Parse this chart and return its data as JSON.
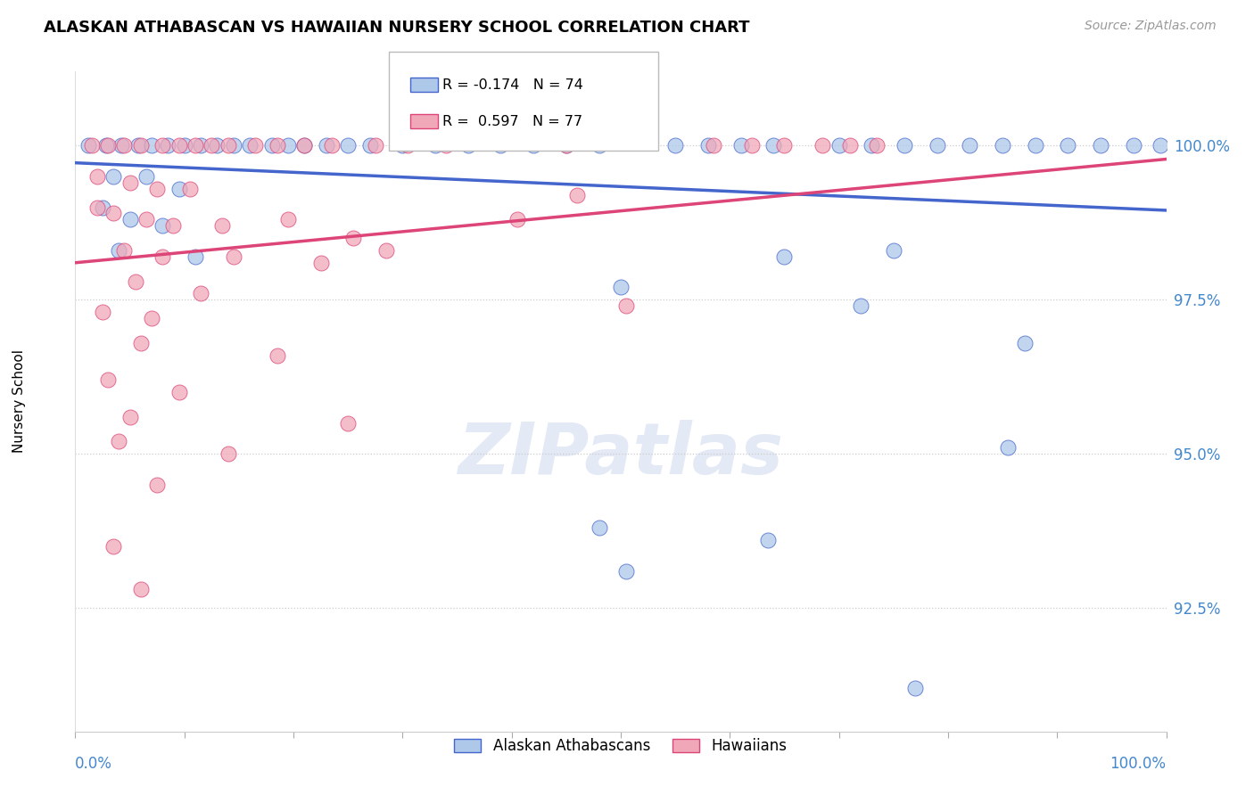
{
  "title": "ALASKAN ATHABASCAN VS HAWAIIAN NURSERY SCHOOL CORRELATION CHART",
  "source": "Source: ZipAtlas.com",
  "ylabel": "Nursery School",
  "legend_blue_label": "Alaskan Athabascans",
  "legend_pink_label": "Hawaiians",
  "legend_blue_r": "R = -0.174",
  "legend_blue_n": "N = 74",
  "legend_pink_r": "R =  0.597",
  "legend_pink_n": "N = 77",
  "blue_color": "#aec8ea",
  "pink_color": "#f0a8b8",
  "line_blue": "#4466cc",
  "line_pink": "#dd4477",
  "ytick_values": [
    92.5,
    95.0,
    97.5,
    100.0
  ],
  "ylim": [
    90.5,
    101.2
  ],
  "xlim": [
    0,
    100
  ],
  "blue_line_x": [
    0,
    100
  ],
  "blue_line_y": [
    99.72,
    98.95
  ],
  "pink_line_x": [
    0,
    100
  ],
  "pink_line_y": [
    98.1,
    99.78
  ],
  "blue_points": [
    [
      1.2,
      100.0
    ],
    [
      2.8,
      100.0
    ],
    [
      4.2,
      100.0
    ],
    [
      5.8,
      100.0
    ],
    [
      7.0,
      100.0
    ],
    [
      8.5,
      100.0
    ],
    [
      10.0,
      100.0
    ],
    [
      11.5,
      100.0
    ],
    [
      13.0,
      100.0
    ],
    [
      14.5,
      100.0
    ],
    [
      16.0,
      100.0
    ],
    [
      18.0,
      100.0
    ],
    [
      19.5,
      100.0
    ],
    [
      21.0,
      100.0
    ],
    [
      23.0,
      100.0
    ],
    [
      25.0,
      100.0
    ],
    [
      27.0,
      100.0
    ],
    [
      30.0,
      100.0
    ],
    [
      33.0,
      100.0
    ],
    [
      36.0,
      100.0
    ],
    [
      39.0,
      100.0
    ],
    [
      42.0,
      100.0
    ],
    [
      45.0,
      100.0
    ],
    [
      48.0,
      100.0
    ],
    [
      55.0,
      100.0
    ],
    [
      58.0,
      100.0
    ],
    [
      61.0,
      100.0
    ],
    [
      64.0,
      100.0
    ],
    [
      70.0,
      100.0
    ],
    [
      73.0,
      100.0
    ],
    [
      76.0,
      100.0
    ],
    [
      79.0,
      100.0
    ],
    [
      82.0,
      100.0
    ],
    [
      85.0,
      100.0
    ],
    [
      88.0,
      100.0
    ],
    [
      91.0,
      100.0
    ],
    [
      94.0,
      100.0
    ],
    [
      97.0,
      100.0
    ],
    [
      99.5,
      100.0
    ],
    [
      3.5,
      99.5
    ],
    [
      6.5,
      99.5
    ],
    [
      9.5,
      99.3
    ],
    [
      2.5,
      99.0
    ],
    [
      5.0,
      98.8
    ],
    [
      8.0,
      98.7
    ],
    [
      4.0,
      98.3
    ],
    [
      11.0,
      98.2
    ],
    [
      65.0,
      98.2
    ],
    [
      75.0,
      98.3
    ],
    [
      50.0,
      97.7
    ],
    [
      72.0,
      97.4
    ],
    [
      87.0,
      96.8
    ],
    [
      85.5,
      95.1
    ],
    [
      48.0,
      93.8
    ],
    [
      63.5,
      93.6
    ],
    [
      50.5,
      93.1
    ],
    [
      77.0,
      91.2
    ]
  ],
  "pink_points": [
    [
      1.5,
      100.0
    ],
    [
      3.0,
      100.0
    ],
    [
      4.5,
      100.0
    ],
    [
      6.0,
      100.0
    ],
    [
      8.0,
      100.0
    ],
    [
      9.5,
      100.0
    ],
    [
      11.0,
      100.0
    ],
    [
      12.5,
      100.0
    ],
    [
      14.0,
      100.0
    ],
    [
      16.5,
      100.0
    ],
    [
      18.5,
      100.0
    ],
    [
      21.0,
      100.0
    ],
    [
      23.5,
      100.0
    ],
    [
      27.5,
      100.0
    ],
    [
      30.5,
      100.0
    ],
    [
      34.0,
      100.0
    ],
    [
      45.0,
      100.0
    ],
    [
      58.5,
      100.0
    ],
    [
      62.0,
      100.0
    ],
    [
      65.0,
      100.0
    ],
    [
      68.5,
      100.0
    ],
    [
      71.0,
      100.0
    ],
    [
      73.5,
      100.0
    ],
    [
      2.0,
      99.5
    ],
    [
      5.0,
      99.4
    ],
    [
      7.5,
      99.3
    ],
    [
      10.5,
      99.3
    ],
    [
      3.5,
      98.9
    ],
    [
      6.5,
      98.8
    ],
    [
      9.0,
      98.7
    ],
    [
      13.5,
      98.7
    ],
    [
      19.5,
      98.8
    ],
    [
      40.5,
      98.8
    ],
    [
      4.5,
      98.3
    ],
    [
      8.0,
      98.2
    ],
    [
      14.5,
      98.2
    ],
    [
      22.5,
      98.1
    ],
    [
      28.5,
      98.3
    ],
    [
      5.5,
      97.8
    ],
    [
      11.5,
      97.6
    ],
    [
      50.5,
      97.4
    ],
    [
      2.5,
      97.3
    ],
    [
      7.0,
      97.2
    ],
    [
      6.0,
      96.8
    ],
    [
      18.5,
      96.6
    ],
    [
      3.0,
      96.2
    ],
    [
      9.5,
      96.0
    ],
    [
      5.0,
      95.6
    ],
    [
      25.0,
      95.5
    ],
    [
      4.0,
      95.2
    ],
    [
      14.0,
      95.0
    ],
    [
      7.5,
      94.5
    ],
    [
      3.5,
      93.5
    ],
    [
      6.0,
      92.8
    ],
    [
      2.0,
      99.0
    ],
    [
      25.5,
      98.5
    ],
    [
      46.0,
      99.2
    ]
  ]
}
